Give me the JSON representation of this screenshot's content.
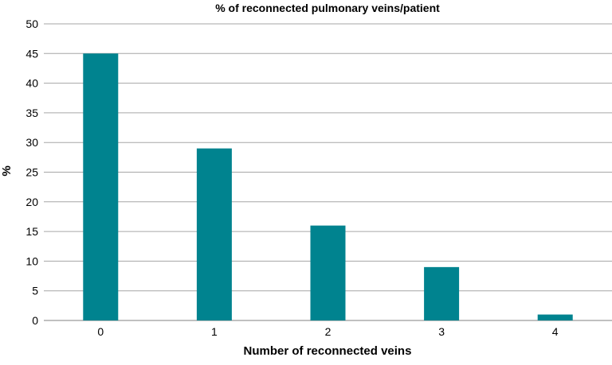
{
  "chart_data": {
    "type": "bar",
    "title": "% of reconnected pulmonary veins/patient",
    "xlabel": "Number of reconnected veins",
    "ylabel": "%",
    "categories": [
      "0",
      "1",
      "2",
      "3",
      "4"
    ],
    "values": [
      45,
      29,
      16,
      9,
      1
    ],
    "ylim": [
      0,
      50
    ],
    "yticks": [
      "0",
      "5",
      "10",
      "15",
      "20",
      "25",
      "30",
      "35",
      "40",
      "45",
      "50"
    ],
    "grid": true,
    "legend": "none",
    "bar_color": "#00838f"
  }
}
